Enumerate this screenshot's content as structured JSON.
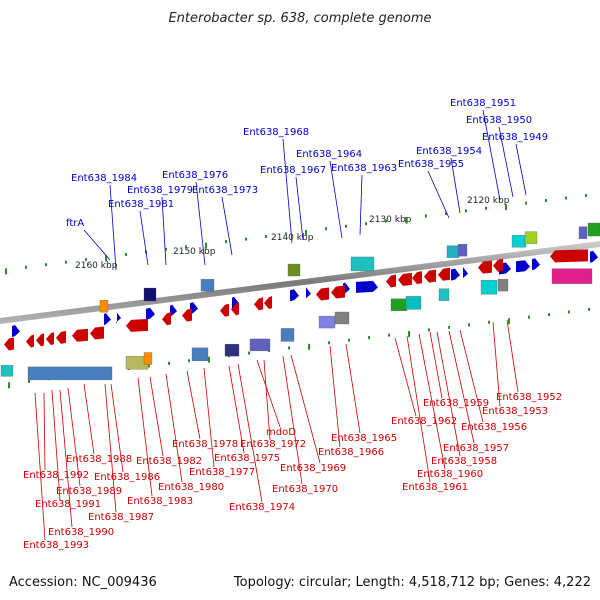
{
  "title": "Enterobacter sp. 638, complete genome",
  "footer": {
    "accession": "Accession: NC_009436",
    "summary": "Topology: circular; Length: 4,518,712 bp; Genes: 4,222"
  },
  "colors": {
    "forward": "#0000c8",
    "reverse": "#cc0000",
    "backbone": "#888888"
  },
  "ruler": [
    {
      "label": "2160 kbp"
    },
    {
      "label": "2150 kbp"
    },
    {
      "label": "2140 kbp"
    },
    {
      "label": "2130 kbp"
    },
    {
      "label": "2120 kbp"
    }
  ],
  "forward_genes": [
    "Ent638_1984",
    "ftrA",
    "Ent638_1981",
    "Ent638_1979",
    "Ent638_1976",
    "Ent638_1973",
    "Ent638_1968",
    "Ent638_1967",
    "Ent638_1964",
    "Ent638_1963",
    "Ent638_1955",
    "Ent638_1954",
    "Ent638_1951",
    "Ent638_1950",
    "Ent638_1949"
  ],
  "reverse_genes": [
    "Ent638_1993",
    "Ent638_1992",
    "Ent638_1991",
    "Ent638_1990",
    "Ent638_1989",
    "Ent638_1988",
    "Ent638_1987",
    "Ent638_1986",
    "Ent638_1983",
    "Ent638_1982",
    "Ent638_1980",
    "Ent638_1978",
    "Ent638_1977",
    "Ent638_1975",
    "Ent638_1974",
    "mdoD",
    "Ent638_1972",
    "Ent638_1970",
    "Ent638_1969",
    "Ent638_1966",
    "Ent638_1965",
    "Ent638_1962",
    "Ent638_1961",
    "Ent638_1960",
    "Ent638_1959",
    "Ent638_1958",
    "Ent638_1957",
    "Ent638_1956",
    "Ent638_1953",
    "Ent638_1952"
  ]
}
